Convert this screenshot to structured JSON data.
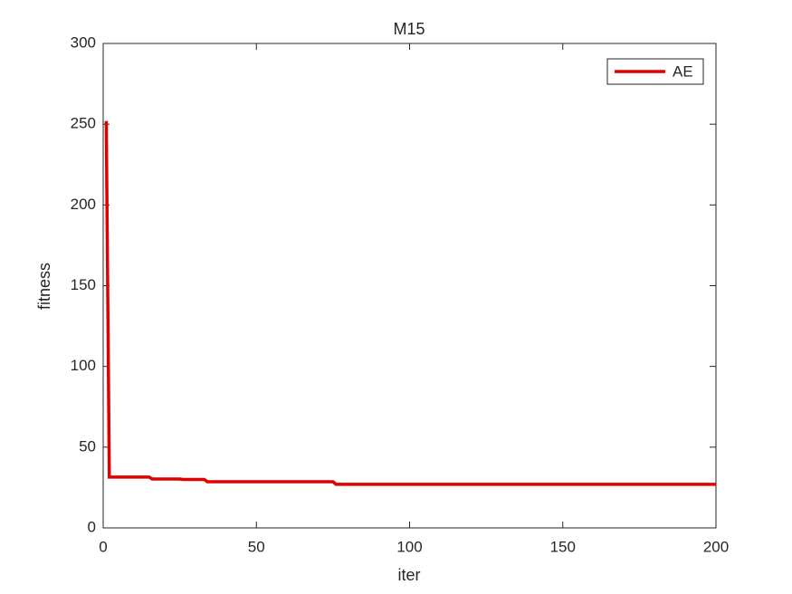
{
  "chart_data": {
    "type": "line",
    "title": "M15",
    "x_label": "iter",
    "y_label": "fitness",
    "x": [
      1,
      2,
      15,
      16,
      25,
      26,
      33,
      34,
      75,
      76,
      200
    ],
    "series": [
      {
        "name": "AE",
        "color": "#e00000",
        "values": [
          252,
          31.5,
          31.5,
          30.3,
          30.3,
          30,
          30,
          28.6,
          28.6,
          27,
          27
        ]
      }
    ],
    "xlim": [
      0,
      200
    ],
    "xticks": [
      0,
      50,
      100,
      150,
      200
    ],
    "ylim": [
      0,
      300
    ],
    "yticks": [
      0,
      50,
      100,
      150,
      200,
      250,
      300
    ],
    "grid": false,
    "legend_position": "top-right"
  }
}
